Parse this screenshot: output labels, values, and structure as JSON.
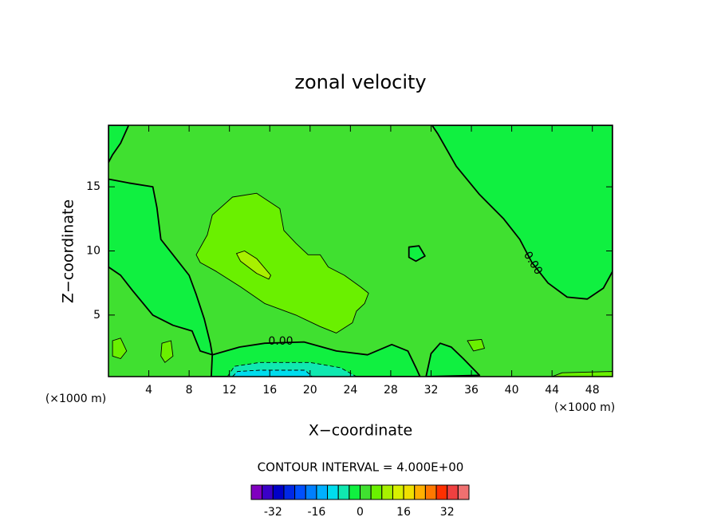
{
  "chart_data": {
    "type": "contour",
    "title": "zonal velocity",
    "x_label": "X−coordinate",
    "y_label": "Z−coordinate",
    "x_unit": "(×1000 m)",
    "y_unit": "(×1000 m)",
    "note": "CONTOUR INTERVAL = 4.000E+00",
    "xlim": [
      0,
      50
    ],
    "ylim": [
      0.2,
      19.8
    ],
    "xticks": [
      4,
      8,
      12,
      16,
      20,
      24,
      28,
      32,
      36,
      40,
      44,
      48
    ],
    "yticks": [
      5,
      10,
      15
    ],
    "background_level": 0,
    "contour_labels": [
      "0.00",
      "0.00"
    ],
    "regions": [
      {
        "level": -4,
        "x": [
          32.1,
          32.7,
          34.5,
          36.8,
          39.2,
          40.8,
          42,
          43.6,
          45.5,
          47.5,
          49.1,
          50,
          50
        ],
        "z": [
          19.8,
          19.1,
          16.6,
          14.4,
          12.5,
          10.9,
          9.1,
          7.5,
          6.4,
          6.25,
          7.1,
          8.4,
          19.8
        ]
      },
      {
        "level": -4,
        "x": [
          0,
          2,
          1.2,
          0.4,
          0
        ],
        "z": [
          19.8,
          19.8,
          18.4,
          17.5,
          16.9
        ]
      },
      {
        "level": -4,
        "x": [
          0,
          2,
          4.4,
          4.8,
          5.2,
          6.4,
          8,
          8.7,
          9.5,
          10.1,
          10.3,
          9.1,
          8.3,
          6.4,
          4.4,
          2.4,
          1.2,
          0
        ],
        "z": [
          15.6,
          15.3,
          15,
          13.4,
          10.9,
          9.7,
          8.1,
          6.6,
          4.7,
          2.8,
          1.9,
          2.2,
          3.75,
          4.2,
          5,
          6.9,
          8.1,
          8.75
        ]
      },
      {
        "level": -4,
        "x": [
          10.3,
          13,
          15.5,
          19.4,
          22.6,
          25.7,
          28.1,
          29.7,
          30.5,
          30.9,
          10.2
        ],
        "z": [
          1.9,
          2.5,
          2.8,
          2.9,
          2.2,
          1.9,
          2.7,
          2.2,
          0.9,
          0.2,
          0.2
        ]
      },
      {
        "level": -4,
        "x": [
          31.5,
          32,
          32.9,
          34,
          35.2,
          36.8
        ],
        "z": [
          0.2,
          2,
          2.8,
          2.5,
          1.6,
          0.3
        ]
      },
      {
        "level": -4,
        "x": [
          29.8,
          30.8,
          31.4,
          30.5,
          29.8
        ],
        "z": [
          10.3,
          10.4,
          9.6,
          9.2,
          9.5
        ]
      },
      {
        "level": -8,
        "x": [
          11.8,
          12.5,
          15,
          20,
          23,
          24.6
        ],
        "z": [
          0.2,
          1,
          1.3,
          1.3,
          0.9,
          0.2
        ]
      },
      {
        "level": -12,
        "x": [
          12.3,
          12.8,
          15,
          19.5,
          20.2
        ],
        "z": [
          0.2,
          0.6,
          0.7,
          0.7,
          0.2
        ]
      },
      {
        "level": 4,
        "x": [
          8.7,
          9.8,
          10.3,
          12.3,
          14.7,
          17,
          17.4,
          18.6,
          19.8,
          21,
          21.8,
          23.4,
          25,
          25.8,
          25.4,
          24.6,
          24.2,
          22.6,
          21,
          18.6,
          15.5,
          13.1,
          10.7,
          9.1
        ],
        "z": [
          9.7,
          11.25,
          12.8,
          14.2,
          14.5,
          13.3,
          11.6,
          10.6,
          9.7,
          9.7,
          8.75,
          8.1,
          7.2,
          6.7,
          5.9,
          5.3,
          4.4,
          3.6,
          4.1,
          5,
          5.9,
          7.2,
          8.4,
          9.1
        ]
      },
      {
        "level": 8,
        "x": [
          12.7,
          13.5,
          14.7,
          16.1,
          15.9,
          14.7,
          13.1
        ],
        "z": [
          9.8,
          10,
          9.4,
          8.1,
          7.8,
          8.25,
          9.2
        ]
      },
      {
        "level": 4,
        "x": [
          0.4,
          1.2,
          1.8,
          1.2,
          0.4
        ],
        "z": [
          3,
          3.2,
          2.2,
          1.6,
          1.8
        ]
      },
      {
        "level": 4,
        "x": [
          5.3,
          6.2,
          6.4,
          5.6,
          5.2
        ],
        "z": [
          2.8,
          3,
          1.8,
          1.3,
          1.8
        ]
      },
      {
        "level": 4,
        "x": [
          35.6,
          37,
          37.3,
          36.2
        ],
        "z": [
          3,
          3.1,
          2.4,
          2.2
        ]
      },
      {
        "level": 4,
        "x": [
          44,
          45,
          50,
          50
        ],
        "z": [
          0.2,
          0.5,
          0.6,
          0.2
        ]
      }
    ],
    "colorbar": {
      "levels": [
        -40,
        -36,
        -32,
        -28,
        -24,
        -20,
        -16,
        -12,
        -8,
        -4,
        0,
        4,
        8,
        12,
        16,
        20,
        24,
        28,
        32,
        36,
        40
      ],
      "colors": [
        "#8000c0",
        "#3a00c8",
        "#0000c8",
        "#0028e6",
        "#0050ff",
        "#0080ff",
        "#00b0ff",
        "#00ddee",
        "#10e8b0",
        "#10f040",
        "#40e030",
        "#6af000",
        "#a8f000",
        "#d8f000",
        "#f0e000",
        "#ffb000",
        "#ff7800",
        "#ff3000",
        "#f04040",
        "#f07070"
      ],
      "ticks": [
        -32,
        -16,
        0,
        16,
        32
      ]
    }
  }
}
